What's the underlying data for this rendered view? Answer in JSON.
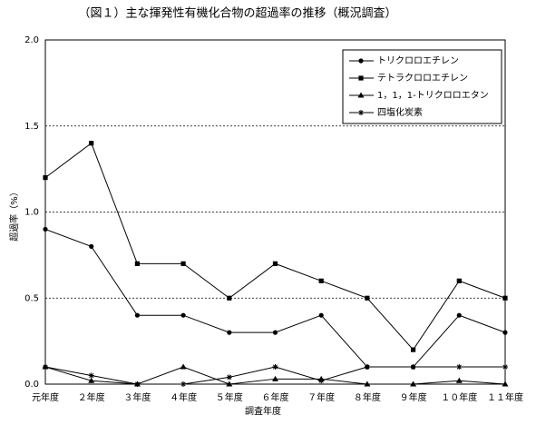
{
  "chart_data": {
    "type": "line",
    "title": "（図１）主な揮発性有機化合物の超過率の推移（概況調査）",
    "x_label": "調査年度",
    "y_label": "超過率（%）",
    "categories": [
      "元年度",
      "２年度",
      "３年度",
      "４年度",
      "５年度",
      "６年度",
      "７年度",
      "８年度",
      "９年度",
      "１０年度",
      "１１年度"
    ],
    "series": [
      {
        "name": "トリクロロエチレン",
        "color": "#000000",
        "marker": "circle",
        "values": [
          0.9,
          0.8,
          0.4,
          0.4,
          0.3,
          0.3,
          0.4,
          0.1,
          0.1,
          0.4,
          0.3
        ]
      },
      {
        "name": "テトラクロロエチレン",
        "color": "#000000",
        "marker": "square",
        "values": [
          1.2,
          1.4,
          0.7,
          0.7,
          0.5,
          0.7,
          0.6,
          0.5,
          0.2,
          0.6,
          0.5
        ]
      },
      {
        "name": "1，1，1-トリクロロエタン",
        "color": "#000000",
        "marker": "triangle",
        "values": [
          0.1,
          0.02,
          0,
          0.1,
          0,
          0.03,
          0.03,
          0,
          0,
          0.02,
          0
        ]
      },
      {
        "name": "四塩化炭素",
        "color": "#000000",
        "marker": "star",
        "values": [
          0.1,
          0.05,
          0,
          0,
          0.04,
          0.1,
          0.02,
          0.1,
          0.1,
          0.1,
          0.1
        ]
      }
    ],
    "ylim": [
      0,
      2
    ],
    "yticks": [
      {
        "value": 0,
        "label": "0.0"
      },
      {
        "value": 0.5,
        "label": "0.5"
      },
      {
        "value": 1,
        "label": "1.0"
      },
      {
        "value": 1.5,
        "label": "1.5"
      },
      {
        "value": 2,
        "label": "2.0"
      }
    ],
    "grid": true,
    "legend": "top-right"
  }
}
